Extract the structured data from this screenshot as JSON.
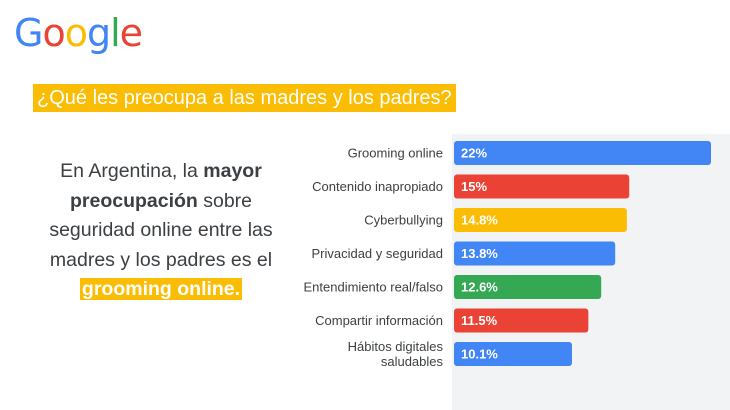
{
  "logo": {
    "letters": [
      {
        "ch": "G",
        "color": "#4285f4"
      },
      {
        "ch": "o",
        "color": "#ea4335"
      },
      {
        "ch": "o",
        "color": "#fbbc04"
      },
      {
        "ch": "g",
        "color": "#4285f4"
      },
      {
        "ch": "l",
        "color": "#34a853"
      },
      {
        "ch": "e",
        "color": "#ea4335"
      }
    ]
  },
  "headline": "¿Qué les preocupa a las madres y los padres?",
  "intro": {
    "t1": "En Argentina, la ",
    "b1": "mayor preocupación",
    "t2": " sobre seguridad online entre las madres y los padres es el ",
    "hl": "grooming online."
  },
  "colors": {
    "blue": "#4285f4",
    "red": "#ea4335",
    "yellow": "#fbbc04",
    "green": "#34a853",
    "text": "#3c4043",
    "panel": "#f1f3f4"
  },
  "chart_data": {
    "type": "bar",
    "orientation": "horizontal",
    "categories": [
      [
        "Grooming online"
      ],
      [
        "Contenido inapropiado"
      ],
      [
        "Cyberbullying"
      ],
      [
        "Privacidad y seguridad"
      ],
      [
        "Entendimiento real/falso"
      ],
      [
        "Compartir información"
      ],
      [
        "Hábitos digitales",
        "saludables"
      ]
    ],
    "values": [
      22,
      15,
      14.8,
      13.8,
      12.6,
      11.5,
      10.1
    ],
    "value_labels": [
      "22%",
      "15%",
      "14.8%",
      "13.8%",
      "12.6%",
      "11.5%",
      "10.1%"
    ],
    "bar_colors": [
      "#4285f4",
      "#ea4335",
      "#fbbc04",
      "#4285f4",
      "#34a853",
      "#ea4335",
      "#4285f4"
    ],
    "xlim": [
      0,
      22
    ],
    "grid": false,
    "legend": "none"
  }
}
